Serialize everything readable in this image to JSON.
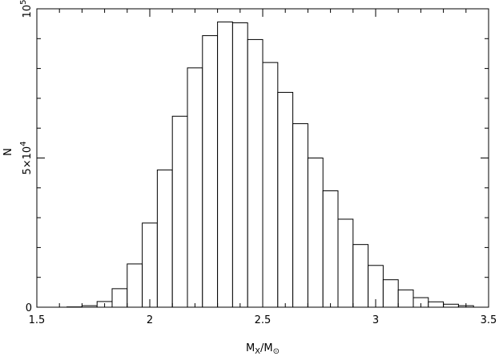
{
  "chart_data": {
    "type": "bar",
    "xlabel": {
      "main": "M",
      "sub1": "X",
      "slash": "/",
      "main2": "M",
      "sub2": "⊙"
    },
    "ylabel": "N",
    "xlim": [
      1.5,
      3.5
    ],
    "ylim": [
      0,
      100000
    ],
    "bin_width": 0.0666667,
    "x_ticks": [
      {
        "value": 1.5,
        "label": "1.5"
      },
      {
        "value": 2.0,
        "label": "2"
      },
      {
        "value": 2.5,
        "label": "2.5"
      },
      {
        "value": 3.0,
        "label": "3"
      },
      {
        "value": 3.5,
        "label": "3.5"
      }
    ],
    "y_ticks": [
      {
        "value": 0,
        "label": "0"
      },
      {
        "value": 50000,
        "label_base": "5×10",
        "label_exp": "4"
      },
      {
        "value": 100000,
        "label_base": "10",
        "label_exp": "5"
      }
    ],
    "bins": [
      {
        "x0": 1.6333,
        "x1": 1.7,
        "count": 100
      },
      {
        "x0": 1.7,
        "x1": 1.7667,
        "count": 500
      },
      {
        "x0": 1.7667,
        "x1": 1.8333,
        "count": 1900
      },
      {
        "x0": 1.8333,
        "x1": 1.9,
        "count": 6200
      },
      {
        "x0": 1.9,
        "x1": 1.9667,
        "count": 14500
      },
      {
        "x0": 1.9667,
        "x1": 2.0333,
        "count": 28200
      },
      {
        "x0": 2.0333,
        "x1": 2.1,
        "count": 46000
      },
      {
        "x0": 2.1,
        "x1": 2.1667,
        "count": 64000
      },
      {
        "x0": 2.1667,
        "x1": 2.2333,
        "count": 80200
      },
      {
        "x0": 2.2333,
        "x1": 2.3,
        "count": 91000
      },
      {
        "x0": 2.3,
        "x1": 2.3667,
        "count": 95600
      },
      {
        "x0": 2.3667,
        "x1": 2.4333,
        "count": 95300
      },
      {
        "x0": 2.4333,
        "x1": 2.5,
        "count": 89700
      },
      {
        "x0": 2.5,
        "x1": 2.5667,
        "count": 82000
      },
      {
        "x0": 2.5667,
        "x1": 2.6333,
        "count": 72000
      },
      {
        "x0": 2.6333,
        "x1": 2.7,
        "count": 61500
      },
      {
        "x0": 2.7,
        "x1": 2.7667,
        "count": 50000
      },
      {
        "x0": 2.7667,
        "x1": 2.8333,
        "count": 39000
      },
      {
        "x0": 2.8333,
        "x1": 2.9,
        "count": 29500
      },
      {
        "x0": 2.9,
        "x1": 2.9667,
        "count": 21000
      },
      {
        "x0": 2.9667,
        "x1": 3.0333,
        "count": 14000
      },
      {
        "x0": 3.0333,
        "x1": 3.1,
        "count": 9200
      },
      {
        "x0": 3.1,
        "x1": 3.1667,
        "count": 5800
      },
      {
        "x0": 3.1667,
        "x1": 3.2333,
        "count": 3200
      },
      {
        "x0": 3.2333,
        "x1": 3.3,
        "count": 1800
      },
      {
        "x0": 3.3,
        "x1": 3.3667,
        "count": 1000
      },
      {
        "x0": 3.3667,
        "x1": 3.4333,
        "count": 500
      }
    ]
  }
}
